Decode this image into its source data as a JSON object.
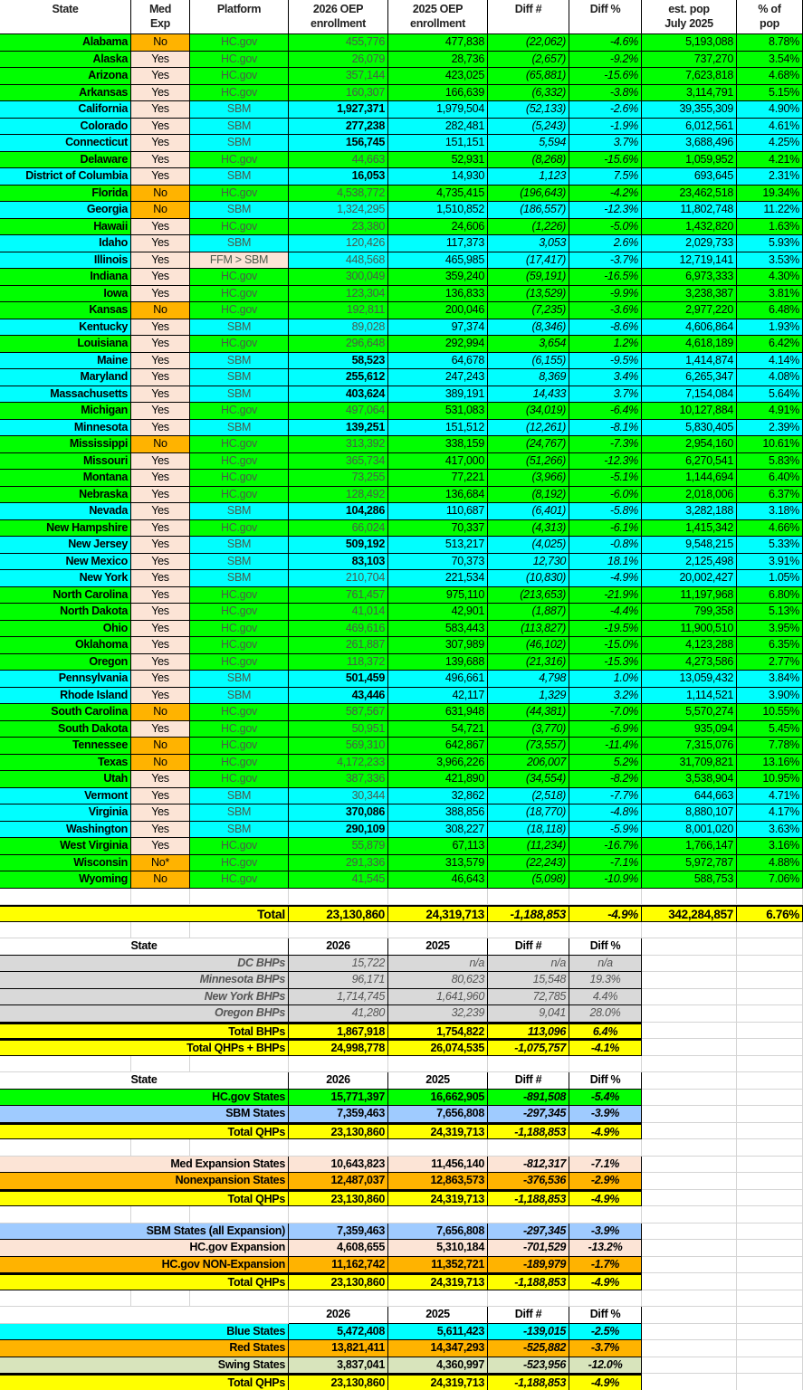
{
  "colors": {
    "hcgov": "#00ff00",
    "sbm": "#00ffff",
    "no_exp": "#ffb300",
    "yes_exp": "#fce4d6",
    "total": "#ffff00",
    "bhp": "#d9d9d9",
    "sbm_light": "#9fcbff",
    "swing": "#d8e4bc"
  },
  "main_table": {
    "headers": [
      "State",
      "Med\nExp",
      "Platform",
      "2026 OEP\nenrollment",
      "2025 OEP\nenrollment",
      "Diff #",
      "Diff %",
      "est. pop\nJuly 2025",
      "% of\npop"
    ],
    "rows": [
      [
        "Alabama",
        "No",
        "HC.gov",
        "455,776",
        "477,838",
        "(22,062)",
        "-4.6%",
        "5,193,088",
        "8.78%",
        false
      ],
      [
        "Alaska",
        "Yes",
        "HC.gov",
        "26,079",
        "28,736",
        "(2,657)",
        "-9.2%",
        "737,270",
        "3.54%",
        false
      ],
      [
        "Arizona",
        "Yes",
        "HC.gov",
        "357,144",
        "423,025",
        "(65,881)",
        "-15.6%",
        "7,623,818",
        "4.68%",
        false
      ],
      [
        "Arkansas",
        "Yes",
        "HC.gov",
        "160,307",
        "166,639",
        "(6,332)",
        "-3.8%",
        "3,114,791",
        "5.15%",
        false
      ],
      [
        "California",
        "Yes",
        "SBM",
        "1,927,371",
        "1,979,504",
        "(52,133)",
        "-2.6%",
        "39,355,309",
        "4.90%",
        true
      ],
      [
        "Colorado",
        "Yes",
        "SBM",
        "277,238",
        "282,481",
        "(5,243)",
        "-1.9%",
        "6,012,561",
        "4.61%",
        true
      ],
      [
        "Connecticut",
        "Yes",
        "SBM",
        "156,745",
        "151,151",
        "5,594",
        "3.7%",
        "3,688,496",
        "4.25%",
        true
      ],
      [
        "Delaware",
        "Yes",
        "HC.gov",
        "44,663",
        "52,931",
        "(8,268)",
        "-15.6%",
        "1,059,952",
        "4.21%",
        false
      ],
      [
        "District of Columbia",
        "Yes",
        "SBM",
        "16,053",
        "14,930",
        "1,123",
        "7.5%",
        "693,645",
        "2.31%",
        true
      ],
      [
        "Florida",
        "No",
        "HC.gov",
        "4,538,772",
        "4,735,415",
        "(196,643)",
        "-4.2%",
        "23,462,518",
        "19.34%",
        false
      ],
      [
        "Georgia",
        "No",
        "SBM",
        "1,324,295",
        "1,510,852",
        "(186,557)",
        "-12.3%",
        "11,802,748",
        "11.22%",
        false
      ],
      [
        "Hawaii",
        "Yes",
        "HC.gov",
        "23,380",
        "24,606",
        "(1,226)",
        "-5.0%",
        "1,432,820",
        "1.63%",
        false
      ],
      [
        "Idaho",
        "Yes",
        "SBM",
        "120,426",
        "117,373",
        "3,053",
        "2.6%",
        "2,029,733",
        "5.93%",
        false
      ],
      [
        "Illinois",
        "Yes",
        "FFM > SBM",
        "448,568",
        "465,985",
        "(17,417)",
        "-3.7%",
        "12,719,141",
        "3.53%",
        false
      ],
      [
        "Indiana",
        "Yes",
        "HC.gov",
        "300,049",
        "359,240",
        "(59,191)",
        "-16.5%",
        "6,973,333",
        "4.30%",
        false
      ],
      [
        "Iowa",
        "Yes",
        "HC.gov",
        "123,304",
        "136,833",
        "(13,529)",
        "-9.9%",
        "3,238,387",
        "3.81%",
        false
      ],
      [
        "Kansas",
        "No",
        "HC.gov",
        "192,811",
        "200,046",
        "(7,235)",
        "-3.6%",
        "2,977,220",
        "6.48%",
        false
      ],
      [
        "Kentucky",
        "Yes",
        "SBM",
        "89,028",
        "97,374",
        "(8,346)",
        "-8.6%",
        "4,606,864",
        "1.93%",
        false
      ],
      [
        "Louisiana",
        "Yes",
        "HC.gov",
        "296,648",
        "292,994",
        "3,654",
        "1.2%",
        "4,618,189",
        "6.42%",
        false
      ],
      [
        "Maine",
        "Yes",
        "SBM",
        "58,523",
        "64,678",
        "(6,155)",
        "-9.5%",
        "1,414,874",
        "4.14%",
        true
      ],
      [
        "Maryland",
        "Yes",
        "SBM",
        "255,612",
        "247,243",
        "8,369",
        "3.4%",
        "6,265,347",
        "4.08%",
        true
      ],
      [
        "Massachusetts",
        "Yes",
        "SBM",
        "403,624",
        "389,191",
        "14,433",
        "3.7%",
        "7,154,084",
        "5.64%",
        true
      ],
      [
        "Michigan",
        "Yes",
        "HC.gov",
        "497,064",
        "531,083",
        "(34,019)",
        "-6.4%",
        "10,127,884",
        "4.91%",
        false
      ],
      [
        "Minnesota",
        "Yes",
        "SBM",
        "139,251",
        "151,512",
        "(12,261)",
        "-8.1%",
        "5,830,405",
        "2.39%",
        true
      ],
      [
        "Mississippi",
        "No",
        "HC.gov",
        "313,392",
        "338,159",
        "(24,767)",
        "-7.3%",
        "2,954,160",
        "10.61%",
        false
      ],
      [
        "Missouri",
        "Yes",
        "HC.gov",
        "365,734",
        "417,000",
        "(51,266)",
        "-12.3%",
        "6,270,541",
        "5.83%",
        false
      ],
      [
        "Montana",
        "Yes",
        "HC.gov",
        "73,255",
        "77,221",
        "(3,966)",
        "-5.1%",
        "1,144,694",
        "6.40%",
        false
      ],
      [
        "Nebraska",
        "Yes",
        "HC.gov",
        "128,492",
        "136,684",
        "(8,192)",
        "-6.0%",
        "2,018,006",
        "6.37%",
        false
      ],
      [
        "Nevada",
        "Yes",
        "SBM",
        "104,286",
        "110,687",
        "(6,401)",
        "-5.8%",
        "3,282,188",
        "3.18%",
        true
      ],
      [
        "New Hampshire",
        "Yes",
        "HC.gov",
        "66,024",
        "70,337",
        "(4,313)",
        "-6.1%",
        "1,415,342",
        "4.66%",
        false
      ],
      [
        "New Jersey",
        "Yes",
        "SBM",
        "509,192",
        "513,217",
        "(4,025)",
        "-0.8%",
        "9,548,215",
        "5.33%",
        true
      ],
      [
        "New Mexico",
        "Yes",
        "SBM",
        "83,103",
        "70,373",
        "12,730",
        "18.1%",
        "2,125,498",
        "3.91%",
        true
      ],
      [
        "New York",
        "Yes",
        "SBM",
        "210,704",
        "221,534",
        "(10,830)",
        "-4.9%",
        "20,002,427",
        "1.05%",
        false
      ],
      [
        "North Carolina",
        "Yes",
        "HC.gov",
        "761,457",
        "975,110",
        "(213,653)",
        "-21.9%",
        "11,197,968",
        "6.80%",
        false
      ],
      [
        "North Dakota",
        "Yes",
        "HC.gov",
        "41,014",
        "42,901",
        "(1,887)",
        "-4.4%",
        "799,358",
        "5.13%",
        false
      ],
      [
        "Ohio",
        "Yes",
        "HC.gov",
        "469,616",
        "583,443",
        "(113,827)",
        "-19.5%",
        "11,900,510",
        "3.95%",
        false
      ],
      [
        "Oklahoma",
        "Yes",
        "HC.gov",
        "261,887",
        "307,989",
        "(46,102)",
        "-15.0%",
        "4,123,288",
        "6.35%",
        false
      ],
      [
        "Oregon",
        "Yes",
        "HC.gov",
        "118,372",
        "139,688",
        "(21,316)",
        "-15.3%",
        "4,273,586",
        "2.77%",
        false
      ],
      [
        "Pennsylvania",
        "Yes",
        "SBM",
        "501,459",
        "496,661",
        "4,798",
        "1.0%",
        "13,059,432",
        "3.84%",
        true
      ],
      [
        "Rhode Island",
        "Yes",
        "SBM",
        "43,446",
        "42,117",
        "1,329",
        "3.2%",
        "1,114,521",
        "3.90%",
        true
      ],
      [
        "South Carolina",
        "No",
        "HC.gov",
        "587,567",
        "631,948",
        "(44,381)",
        "-7.0%",
        "5,570,274",
        "10.55%",
        false
      ],
      [
        "South Dakota",
        "Yes",
        "HC.gov",
        "50,951",
        "54,721",
        "(3,770)",
        "-6.9%",
        "935,094",
        "5.45%",
        false
      ],
      [
        "Tennessee",
        "No",
        "HC.gov",
        "569,310",
        "642,867",
        "(73,557)",
        "-11.4%",
        "7,315,076",
        "7.78%",
        false
      ],
      [
        "Texas",
        "No",
        "HC.gov",
        "4,172,233",
        "3,966,226",
        "206,007",
        "5.2%",
        "31,709,821",
        "13.16%",
        false
      ],
      [
        "Utah",
        "Yes",
        "HC.gov",
        "387,336",
        "421,890",
        "(34,554)",
        "-8.2%",
        "3,538,904",
        "10.95%",
        false
      ],
      [
        "Vermont",
        "Yes",
        "SBM",
        "30,344",
        "32,862",
        "(2,518)",
        "-7.7%",
        "644,663",
        "4.71%",
        false
      ],
      [
        "Virginia",
        "Yes",
        "SBM",
        "370,086",
        "388,856",
        "(18,770)",
        "-4.8%",
        "8,880,107",
        "4.17%",
        true
      ],
      [
        "Washington",
        "Yes",
        "SBM",
        "290,109",
        "308,227",
        "(18,118)",
        "-5.9%",
        "8,001,020",
        "3.63%",
        true
      ],
      [
        "West Virginia",
        "Yes",
        "HC.gov",
        "55,879",
        "67,113",
        "(11,234)",
        "-16.7%",
        "1,766,147",
        "3.16%",
        false
      ],
      [
        "Wisconsin",
        "No*",
        "HC.gov",
        "291,336",
        "313,579",
        "(22,243)",
        "-7.1%",
        "5,972,787",
        "4.88%",
        false
      ],
      [
        "Wyoming",
        "No",
        "HC.gov",
        "41,545",
        "46,643",
        "(5,098)",
        "-10.9%",
        "588,753",
        "7.06%",
        false
      ]
    ],
    "total": [
      "Total",
      "23,130,860",
      "24,319,713",
      "-1,188,853",
      "-4.9%",
      "342,284,857",
      "6.76%"
    ]
  },
  "summary_tables": [
    {
      "header": [
        "State",
        "2026",
        "2025",
        "Diff #",
        "Diff %"
      ],
      "rows": [
        {
          "label": "DC BHPs",
          "values": [
            "15,722",
            "n/a",
            "n/a",
            "n/a"
          ],
          "style": "bhp"
        },
        {
          "label": "Minnesota BHPs",
          "values": [
            "96,171",
            "80,623",
            "15,548",
            "19.3%"
          ],
          "style": "bhp"
        },
        {
          "label": "New York BHPs",
          "values": [
            "1,714,745",
            "1,641,960",
            "72,785",
            "4.4%"
          ],
          "style": "bhp"
        },
        {
          "label": "Oregon BHPs",
          "values": [
            "41,280",
            "32,239",
            "9,041",
            "28.0%"
          ],
          "style": "bhp"
        },
        {
          "label": "Total BHPs",
          "values": [
            "1,867,918",
            "1,754,822",
            "113,096",
            "6.4%"
          ],
          "style": "total"
        },
        {
          "label": "Total QHPs + BHPs",
          "values": [
            "24,998,778",
            "26,074,535",
            "-1,075,757",
            "-4.1%"
          ],
          "style": "total"
        }
      ]
    },
    {
      "header": [
        "State",
        "2026",
        "2025",
        "Diff #",
        "Diff %"
      ],
      "rows": [
        {
          "label": "HC.gov States",
          "values": [
            "15,771,397",
            "16,662,905",
            "-891,508",
            "-5.4%"
          ],
          "style": "hcgov"
        },
        {
          "label": "SBM States",
          "values": [
            "7,359,463",
            "7,656,808",
            "-297,345",
            "-3.9%"
          ],
          "style": "sbm_light"
        },
        {
          "label": "Total QHPs",
          "values": [
            "23,130,860",
            "24,319,713",
            "-1,188,853",
            "-4.9%"
          ],
          "style": "total"
        }
      ]
    },
    {
      "header": null,
      "rows": [
        {
          "label": "Med Expansion States",
          "values": [
            "10,643,823",
            "11,456,140",
            "-812,317",
            "-7.1%"
          ],
          "style": "yes_exp"
        },
        {
          "label": "Nonexpansion States",
          "values": [
            "12,487,037",
            "12,863,573",
            "-376,536",
            "-2.9%"
          ],
          "style": "no_exp"
        },
        {
          "label": "Total QHPs",
          "values": [
            "23,130,860",
            "24,319,713",
            "-1,188,853",
            "-4.9%"
          ],
          "style": "total"
        }
      ]
    },
    {
      "header": null,
      "rows": [
        {
          "label": "SBM States (all Expansion)",
          "values": [
            "7,359,463",
            "7,656,808",
            "-297,345",
            "-3.9%"
          ],
          "style": "sbm_light"
        },
        {
          "label": "HC.gov Expansion",
          "values": [
            "4,608,655",
            "5,310,184",
            "-701,529",
            "-13.2%"
          ],
          "style": "yes_exp"
        },
        {
          "label": "HC.gov NON-Expansion",
          "values": [
            "11,162,742",
            "11,352,721",
            "-189,979",
            "-1.7%"
          ],
          "style": "no_exp"
        },
        {
          "label": "Total QHPs",
          "values": [
            "23,130,860",
            "24,319,713",
            "-1,188,853",
            "-4.9%"
          ],
          "style": "total"
        }
      ]
    },
    {
      "header": [
        "",
        "2026",
        "2025",
        "Diff #",
        "Diff %"
      ],
      "rows": [
        {
          "label": "Blue States",
          "values": [
            "5,472,408",
            "5,611,423",
            "-139,015",
            "-2.5%"
          ],
          "style": "sbm"
        },
        {
          "label": "Red States",
          "values": [
            "13,821,411",
            "14,347,293",
            "-525,882",
            "-3.7%"
          ],
          "style": "no_exp"
        },
        {
          "label": "Swing States",
          "values": [
            "3,837,041",
            "4,360,997",
            "-523,956",
            "-12.0%"
          ],
          "style": "swing"
        },
        {
          "label": "Total QHPs",
          "values": [
            "23,130,860",
            "24,319,713",
            "-1,188,853",
            "-4.9%"
          ],
          "style": "total"
        }
      ]
    }
  ]
}
